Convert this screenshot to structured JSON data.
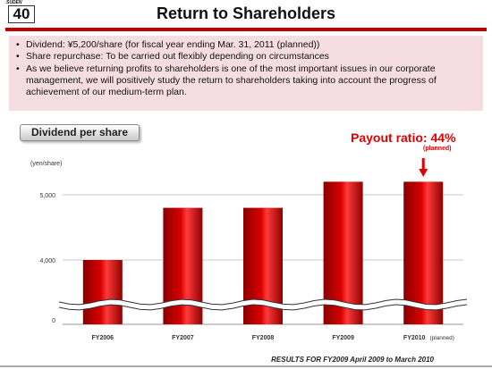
{
  "header": {
    "company": "SUDEN",
    "page_number": "40",
    "title": "Return to Shareholders"
  },
  "bullets": [
    "Dividend:  ¥5,200/share (for fiscal year ending Mar. 31, 2011 (planned))",
    "Share repurchase: To be carried out flexibly depending on circumstances",
    "As we believe returning profits to shareholders is one of the most important  issues in our corporate management, we will positively study the return to shareholders taking into account the progress of achievement of our medium-term plan."
  ],
  "section_label": "Dividend per share",
  "payout": {
    "label": "Payout ratio: 44%",
    "note": "(planned)"
  },
  "footer": {
    "text": "RESULTS FOR FY2009  April 2009 to March 2010"
  },
  "colors": {
    "accent": "#c00000",
    "bar": "#d80000",
    "arrow": "#e00000",
    "bullet_bg": "#f6dde3"
  },
  "chart_data": {
    "type": "bar",
    "unit_label": "(yen/share)",
    "categories": [
      "FY2006",
      "FY2007",
      "FY2008",
      "FY2009",
      "FY2010"
    ],
    "category_notes": [
      "",
      "",
      "",
      "",
      "(planned)"
    ],
    "values": [
      4000,
      4800,
      4800,
      5200,
      5200
    ],
    "yticks": [
      0,
      4000,
      5000
    ],
    "ytick_labels": [
      "0",
      "4,000",
      "5,000"
    ],
    "ylim": [
      3600,
      5500
    ],
    "axis_break": true,
    "grid": true,
    "arrow_on": "FY2010"
  }
}
